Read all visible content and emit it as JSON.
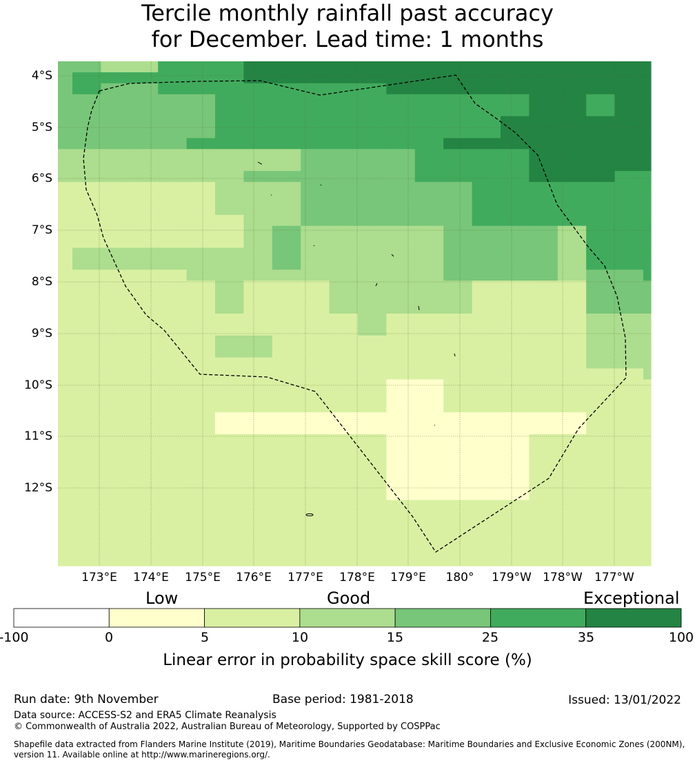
{
  "title": {
    "line1": "Tercile monthly rainfall past accuracy",
    "line2": "for December. Lead time: 1 months"
  },
  "map": {
    "lat_labels": [
      "4°S",
      "5°S",
      "6°S",
      "7°S",
      "8°S",
      "9°S",
      "10°S",
      "11°S",
      "12°S"
    ],
    "lon_labels": [
      "173°E",
      "174°E",
      "175°E",
      "176°E",
      "177°E",
      "178°E",
      "179°E",
      "180°",
      "179°W",
      "178°W",
      "177°W"
    ],
    "palette": [
      "#ffffff",
      "#ffffcc",
      "#d9f0a3",
      "#addd8e",
      "#78c679",
      "#41ab5d",
      "#238443"
    ],
    "legend_note": "grid values are colorbar class indices (0..6); 9 = land/no data",
    "grid": [
      "4433555666666666666666",
      "4555555666666666666666",
      "4544555555556666666666",
      "4444445555555555566566",
      "4444445555555555566566",
      "4444445555555555666666",
      "4444445555555555666666",
      "4444455555555566666666",
      "3333333334444555566666",
      "3333333334444555566666",
      "3333333444444555566655",
      "2222223334444445555555",
      "2222223334444445555555",
      "2222223334444445555555",
      "2222222334444445555555",
      "2222222343333344443555",
      "2222222343333344443555",
      "2333333343333344443555",
      "2333333343333344443555",
      "2222233333333344443445",
      "2222223222333332222444",
      "2222223222333332222444",
      "2222223222333332222444",
      "2222222222232222222333",
      "2222222222232222222333",
      "2222223322222222222333",
      "2222223322222222222333",
      "2222222222222222222333",
      "2222222222222222222223",
      "2222222222221122222222",
      "2222222222221122222222",
      "2222222222221122222222",
      "2222221111111111111222",
      "2222221111111111111222",
      "2222222222221111122222",
      "2222222222221111122222",
      "2222222222221111122222",
      "2222222222221111122222",
      "2222222222221111122222",
      "2222222222221111122222",
      "2222222222222222222222",
      "2222222222222222222222",
      "2222222222222222222222",
      "2222222222222222222222",
      "2222222222222222222222",
      "2222222222222222222222"
    ]
  },
  "colorbar": {
    "labels": {
      "low": "Low",
      "good": "Good",
      "exceptional": "Exceptional"
    },
    "ticks": [
      "-100",
      "0",
      "5",
      "10",
      "15",
      "25",
      "35",
      "100"
    ],
    "title": "Linear error in probability space skill score (%)"
  },
  "footer": {
    "run_date": "Run date: 9th November",
    "base_period": "Base period: 1981-2018",
    "issued": "Issued: 13/01/2022",
    "data_source": "Data source: ACCESS-S2 and ERA5 Climate Reanalysis",
    "copyright": "© Commonwealth of Australia 2022, Australian Bureau of Meteorology, Supported by COSPPac",
    "shapefile": "Shapefile data extracted from Flanders Marine Institute (2019), Maritime Boundaries Geodatabase: Maritime Boundaries and Exclusive Economic Zones (200NM), version 11. Available online at http://www.marineregions.org/."
  }
}
